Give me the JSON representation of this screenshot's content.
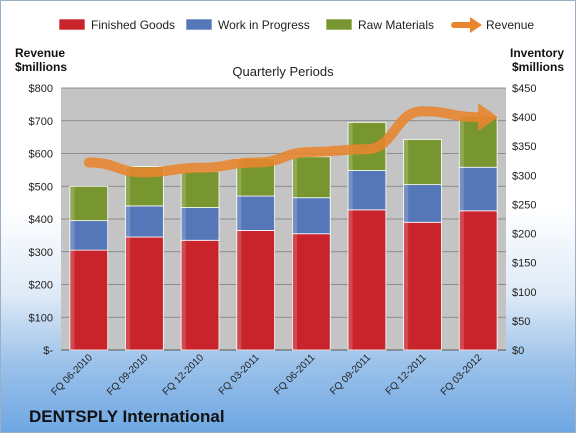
{
  "chart_data": {
    "type": "bar",
    "title": "Quarterly Periods",
    "stacked": true,
    "categories": [
      "FQ 06-2010",
      "FQ 09-2010",
      "FQ 12-2010",
      "FQ 03-2011",
      "FQ 06-2011",
      "FQ 09-2011",
      "FQ 12-2011",
      "FQ 03-2012"
    ],
    "series": [
      {
        "name": "Finished Goods",
        "color": "#c9232b",
        "values": [
          305,
          345,
          335,
          365,
          355,
          428,
          390,
          425
        ]
      },
      {
        "name": "Work in Progress",
        "color": "#5577b8",
        "values": [
          90,
          95,
          100,
          105,
          110,
          120,
          115,
          133
        ]
      },
      {
        "name": "Raw Materials",
        "color": "#77962f",
        "values": [
          105,
          120,
          110,
          115,
          125,
          147,
          138,
          157
        ]
      }
    ],
    "line_series": {
      "name": "Revenue",
      "color": "#e8852f",
      "axis": "right",
      "values": [
        322,
        305,
        313,
        322,
        340,
        345,
        410,
        400
      ]
    },
    "ylabel_left": "Revenue\n$millions",
    "ylabel_right": "Inventory\n$millions",
    "ylim_left": [
      0,
      800
    ],
    "ylim_right": [
      0,
      450
    ],
    "yticks_left": [
      "$-",
      "$100",
      "$200",
      "$300",
      "$400",
      "$500",
      "$600",
      "$700",
      "$800"
    ],
    "yticks_right": [
      "$0",
      "$50",
      "$100",
      "$150",
      "$200",
      "$250",
      "$300",
      "$350",
      "$400",
      "$450"
    ],
    "legend_position": "top",
    "grid": true
  },
  "footer": {
    "company": "DENTSPLY International"
  }
}
